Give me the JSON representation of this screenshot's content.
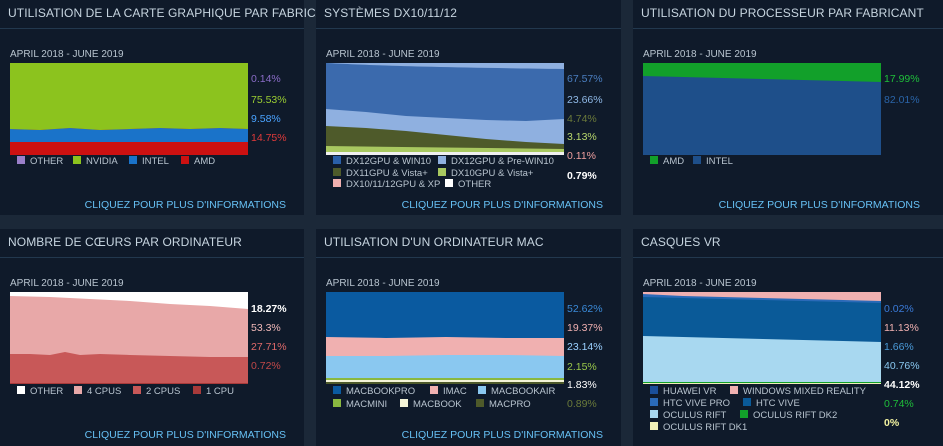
{
  "panels": [
    {
      "title": "UTILISATION DE LA CARTE GRAPHIQUE PAR FABRICANT",
      "period": "APRIL 2018 - JUNE 2019",
      "more": "CLIQUEZ POUR PLUS D'INFORMATIONS",
      "percents": [
        {
          "text": "0.14%",
          "color": "#8a6cc7"
        },
        {
          "text": "75.53%",
          "color": "#9acd32"
        },
        {
          "text": "9.58%",
          "color": "#4aa3ff"
        },
        {
          "text": "14.75%",
          "color": "#e03a3a"
        }
      ],
      "legend": [
        {
          "label": "OTHER",
          "color": "#9a7fc9"
        },
        {
          "label": "NVIDIA",
          "color": "#8cc31e"
        },
        {
          "label": "INTEL",
          "color": "#1a73c9"
        },
        {
          "label": "AMD",
          "color": "#cc1111"
        }
      ]
    },
    {
      "title": "SYSTÈMES DX10/11/12",
      "period": "APRIL 2018 - JUNE 2019",
      "more": "CLIQUEZ POUR PLUS D'INFORMATIONS",
      "percents": [
        {
          "text": "67.57%",
          "color": "#4a7ec0"
        },
        {
          "text": "23.66%",
          "color": "#8fb8e6"
        },
        {
          "text": "4.74%",
          "color": "#6b7a3a"
        },
        {
          "text": "3.13%",
          "color": "#b8d86c"
        },
        {
          "text": "0.11%",
          "color": "#f0a0a0"
        },
        {
          "text": "0.79%",
          "color": "#ffffff"
        }
      ],
      "legend": [
        {
          "label": "DX12GPU & WIN10",
          "color": "#2a5fa8"
        },
        {
          "label": "DX12GPU & Pre-WIN10",
          "color": "#8fb0e0"
        },
        {
          "label": "DX11GPU & Vista+",
          "color": "#4e5a2a"
        },
        {
          "label": "DX10GPU & Vista+",
          "color": "#a8c860"
        },
        {
          "label": "DX10/11/12GPU & XP",
          "color": "#f0b0b0"
        },
        {
          "label": "OTHER",
          "color": "#ffffff"
        }
      ]
    },
    {
      "title": "UTILISATION DU PROCESSEUR PAR FABRICANT",
      "period": "APRIL 2018 - JUNE 2019",
      "more": "CLIQUEZ POUR PLUS D'INFORMATIONS",
      "percents": [
        {
          "text": "17.99%",
          "color": "#1fbf3a"
        },
        {
          "text": "82.01%",
          "color": "#2a64a8"
        }
      ],
      "legend": [
        {
          "label": "AMD",
          "color": "#12a02a"
        },
        {
          "label": "INTEL",
          "color": "#1e4f8a"
        }
      ]
    },
    {
      "title": "NOMBRE DE CŒURS PAR ORDINATEUR",
      "period": "APRIL 2018 - JUNE 2019",
      "more": "CLIQUEZ POUR PLUS D'INFORMATIONS",
      "percents": [
        {
          "text": "18.27%",
          "color": "#ffffff"
        },
        {
          "text": "53.3%",
          "color": "#f0b8b8"
        },
        {
          "text": "27.71%",
          "color": "#e06a6a"
        },
        {
          "text": "0.72%",
          "color": "#c04848"
        }
      ],
      "legend": [
        {
          "label": "OTHER",
          "color": "#ffffff"
        },
        {
          "label": "4 CPUS",
          "color": "#e8a8a8"
        },
        {
          "label": "2 CPUS",
          "color": "#c85858"
        },
        {
          "label": "1 CPU",
          "color": "#a83a3a"
        }
      ]
    },
    {
      "title": "UTILISATION D'UN ORDINATEUR MAC",
      "period": "APRIL 2018 - JUNE 2019",
      "more": "CLIQUEZ POUR PLUS D'INFORMATIONS",
      "percents": [
        {
          "text": "52.62%",
          "color": "#3a8ad8"
        },
        {
          "text": "19.37%",
          "color": "#f0b0b0"
        },
        {
          "text": "23.14%",
          "color": "#9ad0ff"
        },
        {
          "text": "2.15%",
          "color": "#9ac84a"
        },
        {
          "text": "1.83%",
          "color": "#ffffff"
        },
        {
          "text": "0.89%",
          "color": "#6a7a3a"
        }
      ],
      "legend": [
        {
          "label": "MACBOOKPRO",
          "color": "#0a5aa0"
        },
        {
          "label": "IMAC",
          "color": "#f0b0b0"
        },
        {
          "label": "MACBOOKAIR",
          "color": "#8ac8f0"
        },
        {
          "label": "MACMINI",
          "color": "#8ab840"
        },
        {
          "label": "MACBOOK",
          "color": "#f4f4d8"
        },
        {
          "label": "MACPRO",
          "color": "#4e5a2a"
        }
      ]
    },
    {
      "title": "CASQUES VR",
      "period": "APRIL 2018 - JUNE 2019",
      "more": "",
      "percents": [
        {
          "text": "0.02%",
          "color": "#3a7ad8"
        },
        {
          "text": "11.13%",
          "color": "#f0b0b0"
        },
        {
          "text": "1.66%",
          "color": "#4a9ad8"
        },
        {
          "text": "40.76%",
          "color": "#8ac8f0"
        },
        {
          "text": "44.12%",
          "color": "#ffffff"
        },
        {
          "text": "0.74%",
          "color": "#1fbf3a"
        },
        {
          "text": "0%",
          "color": "#f4f4a0"
        }
      ],
      "legend": [
        {
          "label": "HUAWEI VR",
          "color": "#1a4f9a"
        },
        {
          "label": "WINDOWS MIXED REALITY",
          "color": "#f0b0b0"
        },
        {
          "label": "HTC VIVE PRO",
          "color": "#2a6ab8"
        },
        {
          "label": "HTC VIVE",
          "color": "#0a5a98"
        },
        {
          "label": "OCULUS RIFT",
          "color": "#a8d8f0"
        },
        {
          "label": "OCULUS RIFT DK2",
          "color": "#12a02a"
        },
        {
          "label": "OCULUS RIFT DK1",
          "color": "#f0f0b8"
        }
      ]
    }
  ],
  "chart_data": [
    {
      "type": "area",
      "title": "UTILISATION DE LA CARTE GRAPHIQUE PAR FABRICANT",
      "xlabel": "APRIL 2018 - JUNE 2019",
      "series": [
        {
          "name": "OTHER",
          "values": [
            0.14
          ]
        },
        {
          "name": "NVIDIA",
          "values": [
            75.53
          ]
        },
        {
          "name": "INTEL",
          "values": [
            9.58
          ]
        },
        {
          "name": "AMD",
          "values": [
            14.75
          ]
        }
      ]
    },
    {
      "type": "area",
      "title": "SYSTÈMES DX10/11/12",
      "xlabel": "APRIL 2018 - JUNE 2019",
      "series": [
        {
          "name": "DX12GPU & WIN10",
          "values": [
            67.57
          ]
        },
        {
          "name": "DX12GPU & Pre-WIN10",
          "values": [
            23.66
          ]
        },
        {
          "name": "DX11GPU & Vista+",
          "values": [
            4.74
          ]
        },
        {
          "name": "DX10GPU & Vista+",
          "values": [
            3.13
          ]
        },
        {
          "name": "DX10/11/12GPU & XP",
          "values": [
            0.11
          ]
        },
        {
          "name": "OTHER",
          "values": [
            0.79
          ]
        }
      ]
    },
    {
      "type": "area",
      "title": "UTILISATION DU PROCESSEUR PAR FABRICANT",
      "xlabel": "APRIL 2018 - JUNE 2019",
      "series": [
        {
          "name": "AMD",
          "values": [
            17.99
          ]
        },
        {
          "name": "INTEL",
          "values": [
            82.01
          ]
        }
      ]
    },
    {
      "type": "area",
      "title": "NOMBRE DE CŒURS PAR ORDINATEUR",
      "xlabel": "APRIL 2018 - JUNE 2019",
      "series": [
        {
          "name": "OTHER",
          "values": [
            18.27
          ]
        },
        {
          "name": "4 CPUS",
          "values": [
            53.3
          ]
        },
        {
          "name": "2 CPUS",
          "values": [
            27.71
          ]
        },
        {
          "name": "1 CPU",
          "values": [
            0.72
          ]
        }
      ]
    },
    {
      "type": "area",
      "title": "UTILISATION D'UN ORDINATEUR MAC",
      "xlabel": "APRIL 2018 - JUNE 2019",
      "series": [
        {
          "name": "MACBOOKPRO",
          "values": [
            52.62
          ]
        },
        {
          "name": "IMAC",
          "values": [
            19.37
          ]
        },
        {
          "name": "MACBOOKAIR",
          "values": [
            23.14
          ]
        },
        {
          "name": "MACMINI",
          "values": [
            2.15
          ]
        },
        {
          "name": "MACBOOK",
          "values": [
            1.83
          ]
        },
        {
          "name": "MACPRO",
          "values": [
            0.89
          ]
        }
      ]
    },
    {
      "type": "area",
      "title": "CASQUES VR",
      "xlabel": "APRIL 2018 - JUNE 2019",
      "series": [
        {
          "name": "HUAWEI VR",
          "values": [
            0.02
          ]
        },
        {
          "name": "WINDOWS MIXED REALITY",
          "values": [
            11.13
          ]
        },
        {
          "name": "HTC VIVE PRO",
          "values": [
            1.66
          ]
        },
        {
          "name": "HTC VIVE",
          "values": [
            40.76
          ]
        },
        {
          "name": "OCULUS RIFT",
          "values": [
            44.12
          ]
        },
        {
          "name": "OCULUS RIFT DK2",
          "values": [
            0.74
          ]
        },
        {
          "name": "OCULUS RIFT DK1",
          "values": [
            0
          ]
        }
      ]
    }
  ]
}
